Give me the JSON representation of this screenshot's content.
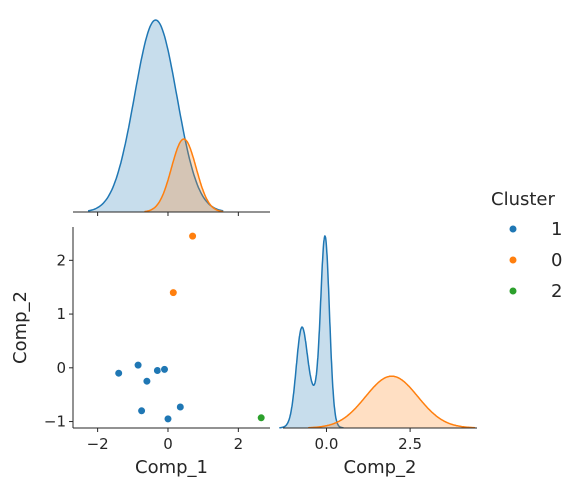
{
  "chart_data": {
    "type": "scatter",
    "kind": "pairplot",
    "variables": [
      "Comp_1",
      "Comp_2"
    ],
    "corner": true,
    "diag_kind": "kde",
    "grid": false,
    "legend": {
      "title": "Cluster",
      "placement": "right",
      "entries": [
        {
          "label": "1",
          "color": "#1f77b4"
        },
        {
          "label": "0",
          "color": "#ff7f0e"
        },
        {
          "label": "2",
          "color": "#2ca02c"
        }
      ]
    },
    "axes": {
      "comp1": {
        "label": "Comp_1",
        "range": [
          -2.7,
          2.9
        ],
        "ticks": [
          -2,
          0,
          2
        ],
        "tick_labels": [
          "−2",
          "0",
          "2"
        ]
      },
      "comp2_scatter": {
        "label": "Comp_2",
        "range": [
          -1.12,
          2.62
        ],
        "ticks": [
          -1,
          0,
          1,
          2
        ],
        "tick_labels": [
          "−1",
          "0",
          "1",
          "2"
        ]
      },
      "comp2_diag": {
        "label": "Comp_2",
        "range": [
          -1.3,
          4.5
        ],
        "ticks": [
          0,
          2.5
        ],
        "tick_labels": [
          "0.0",
          "2.5"
        ]
      }
    },
    "points": [
      {
        "x": -1.4,
        "y": -0.1,
        "cluster": "1"
      },
      {
        "x": -0.85,
        "y": 0.05,
        "cluster": "1"
      },
      {
        "x": -0.6,
        "y": -0.25,
        "cluster": "1"
      },
      {
        "x": -0.3,
        "y": -0.05,
        "cluster": "1"
      },
      {
        "x": -0.1,
        "y": -0.03,
        "cluster": "1"
      },
      {
        "x": -0.75,
        "y": -0.8,
        "cluster": "1"
      },
      {
        "x": 0.35,
        "y": -0.73,
        "cluster": "1"
      },
      {
        "x": 0.0,
        "y": -0.95,
        "cluster": "1"
      },
      {
        "x": 0.7,
        "y": 2.45,
        "cluster": "0"
      },
      {
        "x": 0.15,
        "y": 1.4,
        "cluster": "0"
      },
      {
        "x": 2.65,
        "y": -0.93,
        "cluster": "2"
      }
    ],
    "diagonal_kde": {
      "comp1": [
        {
          "cluster": "1",
          "mean": -0.35,
          "sd": 0.6,
          "relative_peak": 1.0
        },
        {
          "cluster": "0",
          "mean": 0.45,
          "sd": 0.35,
          "relative_peak": 0.38
        }
      ],
      "comp2": [
        {
          "cluster": "1",
          "components": [
            {
              "mean": -0.75,
              "sd": 0.16,
              "weight": 0.45
            },
            {
              "mean": -0.04,
              "sd": 0.13,
              "weight": 1.0
            },
            {
              "mean": -0.45,
              "sd": 0.3,
              "weight": 0.18
            }
          ],
          "relative_peak": 1.0
        },
        {
          "cluster": "0",
          "components": [
            {
              "mean": 1.95,
              "sd": 0.78,
              "weight": 1.0
            }
          ],
          "relative_peak": 0.27
        }
      ]
    }
  }
}
